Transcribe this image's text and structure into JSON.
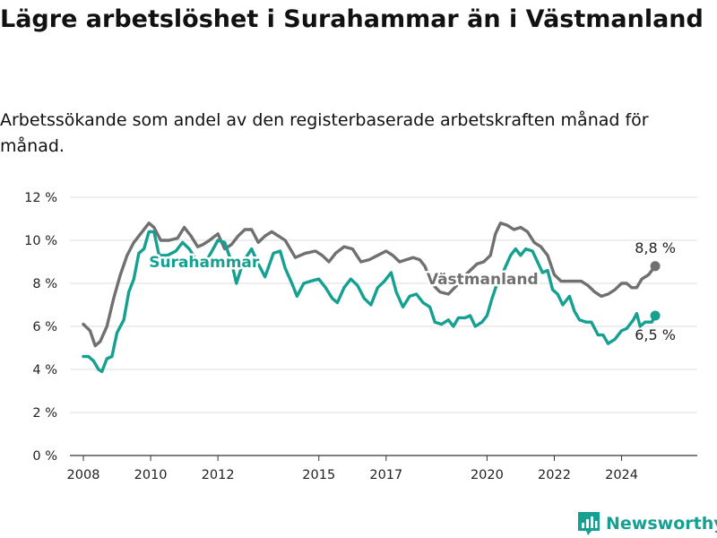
{
  "header": {
    "title": "Lägre arbetslöshet i Surahammar än i Västmanland",
    "subtitle": "Arbetssökande som andel av den registerbaserade arbetskraften månad för månad."
  },
  "brand": {
    "name": "Newsworthy"
  },
  "colors": {
    "surahammar": "#16a091",
    "vastmanland": "#707070",
    "grid": "#dddddd",
    "axis": "#333333"
  },
  "chart_data": {
    "type": "line",
    "title": "Lägre arbetslöshet i Surahammar än i Västmanland",
    "subtitle": "Arbetssökande som andel av den registerbaserade arbetskraften månad för månad.",
    "xlabel": "",
    "ylabel": "",
    "xlim": [
      2007.6,
      2026.25
    ],
    "ylim": [
      0,
      12
    ],
    "x_ticks": [
      2008,
      2010,
      2012,
      2015,
      2017,
      2020,
      2022,
      2024
    ],
    "x_tick_labels": [
      "2008",
      "2010",
      "2012",
      "2015",
      "2017",
      "2020",
      "2022",
      "2024"
    ],
    "y_ticks": [
      0,
      2,
      4,
      6,
      8,
      10,
      12
    ],
    "y_tick_labels": [
      "0 %",
      "2 %",
      "4 %",
      "6 %",
      "8 %",
      "10 %",
      "12 %"
    ],
    "grid": true,
    "legend": "inline labels",
    "series": [
      {
        "name": "Västmanland",
        "color": "#707070",
        "end_label": "8,8 %",
        "points": [
          [
            2008.0,
            6.1
          ],
          [
            2008.2,
            5.8
          ],
          [
            2008.35,
            5.1
          ],
          [
            2008.5,
            5.3
          ],
          [
            2008.7,
            6.0
          ],
          [
            2008.9,
            7.3
          ],
          [
            2009.1,
            8.4
          ],
          [
            2009.3,
            9.3
          ],
          [
            2009.5,
            9.9
          ],
          [
            2009.75,
            10.4
          ],
          [
            2009.95,
            10.8
          ],
          [
            2010.1,
            10.6
          ],
          [
            2010.3,
            10.0
          ],
          [
            2010.55,
            10.0
          ],
          [
            2010.8,
            10.1
          ],
          [
            2011.0,
            10.6
          ],
          [
            2011.2,
            10.2
          ],
          [
            2011.4,
            9.7
          ],
          [
            2011.55,
            9.8
          ],
          [
            2011.75,
            10.0
          ],
          [
            2012.0,
            10.3
          ],
          [
            2012.2,
            9.6
          ],
          [
            2012.4,
            9.8
          ],
          [
            2012.6,
            10.2
          ],
          [
            2012.8,
            10.5
          ],
          [
            2013.0,
            10.5
          ],
          [
            2013.2,
            9.9
          ],
          [
            2013.4,
            10.2
          ],
          [
            2013.6,
            10.4
          ],
          [
            2013.8,
            10.2
          ],
          [
            2014.0,
            10.0
          ],
          [
            2014.3,
            9.2
          ],
          [
            2014.6,
            9.4
          ],
          [
            2014.9,
            9.5
          ],
          [
            2015.1,
            9.3
          ],
          [
            2015.3,
            9.0
          ],
          [
            2015.5,
            9.4
          ],
          [
            2015.75,
            9.7
          ],
          [
            2016.0,
            9.6
          ],
          [
            2016.25,
            9.0
          ],
          [
            2016.5,
            9.1
          ],
          [
            2016.75,
            9.3
          ],
          [
            2017.0,
            9.5
          ],
          [
            2017.2,
            9.3
          ],
          [
            2017.4,
            9.0
          ],
          [
            2017.6,
            9.1
          ],
          [
            2017.8,
            9.2
          ],
          [
            2018.0,
            9.1
          ],
          [
            2018.15,
            8.8
          ],
          [
            2018.35,
            8.0
          ],
          [
            2018.6,
            7.6
          ],
          [
            2018.85,
            7.5
          ],
          [
            2019.1,
            7.9
          ],
          [
            2019.3,
            8.3
          ],
          [
            2019.5,
            8.6
          ],
          [
            2019.7,
            8.9
          ],
          [
            2019.9,
            9.0
          ],
          [
            2020.1,
            9.3
          ],
          [
            2020.25,
            10.3
          ],
          [
            2020.4,
            10.8
          ],
          [
            2020.6,
            10.7
          ],
          [
            2020.8,
            10.5
          ],
          [
            2021.0,
            10.6
          ],
          [
            2021.2,
            10.4
          ],
          [
            2021.4,
            9.9
          ],
          [
            2021.6,
            9.7
          ],
          [
            2021.8,
            9.3
          ],
          [
            2022.0,
            8.4
          ],
          [
            2022.2,
            8.1
          ],
          [
            2022.4,
            8.1
          ],
          [
            2022.6,
            8.1
          ],
          [
            2022.8,
            8.1
          ],
          [
            2023.0,
            7.9
          ],
          [
            2023.2,
            7.6
          ],
          [
            2023.4,
            7.4
          ],
          [
            2023.6,
            7.5
          ],
          [
            2023.8,
            7.7
          ],
          [
            2024.0,
            8.0
          ],
          [
            2024.15,
            8.0
          ],
          [
            2024.3,
            7.8
          ],
          [
            2024.45,
            7.8
          ],
          [
            2024.6,
            8.2
          ],
          [
            2024.8,
            8.4
          ],
          [
            2025.0,
            8.8
          ]
        ]
      },
      {
        "name": "Surahammar",
        "color": "#16a091",
        "end_label": "6,5 %",
        "points": [
          [
            2008.0,
            4.6
          ],
          [
            2008.15,
            4.6
          ],
          [
            2008.3,
            4.4
          ],
          [
            2008.45,
            4.0
          ],
          [
            2008.55,
            3.9
          ],
          [
            2008.7,
            4.5
          ],
          [
            2008.85,
            4.6
          ],
          [
            2009.0,
            5.7
          ],
          [
            2009.2,
            6.3
          ],
          [
            2009.35,
            7.6
          ],
          [
            2009.5,
            8.2
          ],
          [
            2009.65,
            9.4
          ],
          [
            2009.8,
            9.6
          ],
          [
            2009.95,
            10.4
          ],
          [
            2010.1,
            10.4
          ],
          [
            2010.25,
            9.3
          ],
          [
            2010.5,
            9.3
          ],
          [
            2010.75,
            9.5
          ],
          [
            2010.95,
            9.9
          ],
          [
            2011.15,
            9.6
          ],
          [
            2011.35,
            9.1
          ],
          [
            2011.55,
            8.8
          ],
          [
            2011.75,
            9.3
          ],
          [
            2012.0,
            10.0
          ],
          [
            2012.2,
            9.9
          ],
          [
            2012.4,
            9.0
          ],
          [
            2012.55,
            8.0
          ],
          [
            2012.75,
            9.0
          ],
          [
            2013.0,
            9.6
          ],
          [
            2013.2,
            8.9
          ],
          [
            2013.4,
            8.3
          ],
          [
            2013.65,
            9.4
          ],
          [
            2013.85,
            9.5
          ],
          [
            2014.0,
            8.7
          ],
          [
            2014.2,
            8.0
          ],
          [
            2014.35,
            7.4
          ],
          [
            2014.55,
            8.0
          ],
          [
            2014.75,
            8.1
          ],
          [
            2015.0,
            8.2
          ],
          [
            2015.2,
            7.8
          ],
          [
            2015.4,
            7.3
          ],
          [
            2015.55,
            7.1
          ],
          [
            2015.75,
            7.8
          ],
          [
            2015.95,
            8.2
          ],
          [
            2016.15,
            7.9
          ],
          [
            2016.35,
            7.3
          ],
          [
            2016.55,
            7.0
          ],
          [
            2016.75,
            7.8
          ],
          [
            2016.95,
            8.1
          ],
          [
            2017.15,
            8.5
          ],
          [
            2017.3,
            7.6
          ],
          [
            2017.5,
            6.9
          ],
          [
            2017.7,
            7.4
          ],
          [
            2017.9,
            7.5
          ],
          [
            2018.1,
            7.1
          ],
          [
            2018.3,
            6.9
          ],
          [
            2018.45,
            6.2
          ],
          [
            2018.65,
            6.1
          ],
          [
            2018.85,
            6.3
          ],
          [
            2019.0,
            6.0
          ],
          [
            2019.15,
            6.4
          ],
          [
            2019.35,
            6.4
          ],
          [
            2019.5,
            6.5
          ],
          [
            2019.65,
            6.0
          ],
          [
            2019.85,
            6.2
          ],
          [
            2020.0,
            6.5
          ],
          [
            2020.15,
            7.3
          ],
          [
            2020.3,
            8.0
          ],
          [
            2020.5,
            8.6
          ],
          [
            2020.7,
            9.3
          ],
          [
            2020.85,
            9.6
          ],
          [
            2021.0,
            9.3
          ],
          [
            2021.15,
            9.6
          ],
          [
            2021.35,
            9.5
          ],
          [
            2021.5,
            9.0
          ],
          [
            2021.65,
            8.5
          ],
          [
            2021.8,
            8.6
          ],
          [
            2021.95,
            7.7
          ],
          [
            2022.1,
            7.5
          ],
          [
            2022.25,
            7.0
          ],
          [
            2022.45,
            7.4
          ],
          [
            2022.6,
            6.7
          ],
          [
            2022.75,
            6.3
          ],
          [
            2022.95,
            6.2
          ],
          [
            2023.1,
            6.2
          ],
          [
            2023.3,
            5.6
          ],
          [
            2023.45,
            5.6
          ],
          [
            2023.6,
            5.2
          ],
          [
            2023.8,
            5.4
          ],
          [
            2024.0,
            5.8
          ],
          [
            2024.15,
            5.9
          ],
          [
            2024.35,
            6.3
          ],
          [
            2024.45,
            6.6
          ],
          [
            2024.55,
            6.0
          ],
          [
            2024.7,
            6.2
          ],
          [
            2024.9,
            6.2
          ],
          [
            2025.0,
            6.5
          ]
        ]
      }
    ]
  }
}
